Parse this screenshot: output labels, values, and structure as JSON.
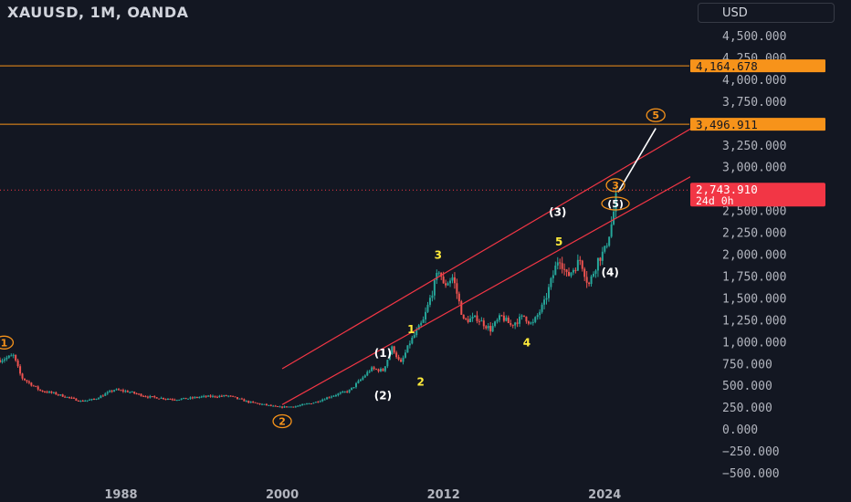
{
  "header": {
    "title": "XAUUSD, 1M, OANDA",
    "currency": "USD"
  },
  "price_badges": {
    "level_high": "4,164.678",
    "level_target": "3,496.911",
    "current_price": "2,743.910",
    "countdown": "24d 0h"
  },
  "colors": {
    "background": "#131722",
    "level_line": "#f7931a",
    "channel": "#f23645",
    "candle_up": "#26a69a",
    "candle_down": "#ef5350",
    "wave_label": "#ffeb3b",
    "arrow": "#ffffff"
  },
  "chart_data": {
    "type": "candlestick",
    "x_ticks": [
      "1988",
      "2000",
      "2012",
      "2024"
    ],
    "y_ticks": [
      "4,500.000",
      "4,250.000",
      "4,000.000",
      "3,750.000",
      "3,500.000",
      "3,250.000",
      "3,000.000",
      "2,750.000",
      "2,500.000",
      "2,250.000",
      "2,000.000",
      "1,750.000",
      "1,500.000",
      "1,250.000",
      "1,000.000",
      "750.000",
      "500.000",
      "250.000",
      "0.000",
      "−250.000",
      "−500.000"
    ],
    "y_tick_values": [
      4500,
      4250,
      4000,
      3750,
      3500,
      3250,
      3000,
      2750,
      2500,
      2250,
      2000,
      1750,
      1500,
      1250,
      1000,
      750,
      500,
      250,
      0,
      -250,
      -500
    ],
    "ylim": [
      -550,
      4800
    ],
    "xlim": [
      1979.0,
      2030.3
    ],
    "horizontal_levels": [
      4164.678,
      3496.911
    ],
    "current_price": 2743.91,
    "price_path": [
      [
        1979.0,
        800
      ],
      [
        1980.0,
        850
      ],
      [
        1980.6,
        600
      ],
      [
        1982.0,
        450
      ],
      [
        1983.0,
        420
      ],
      [
        1985.0,
        330
      ],
      [
        1986.0,
        350
      ],
      [
        1987.5,
        460
      ],
      [
        1988.5,
        440
      ],
      [
        1990.0,
        380
      ],
      [
        1992.0,
        350
      ],
      [
        1993.0,
        360
      ],
      [
        1994.0,
        380
      ],
      [
        1996.0,
        390
      ],
      [
        1997.5,
        320
      ],
      [
        1999.0,
        280
      ],
      [
        1999.7,
        260
      ],
      [
        2001.0,
        270
      ],
      [
        2002.5,
        320
      ],
      [
        2003.5,
        380
      ],
      [
        2005.0,
        450
      ],
      [
        2006.0,
        600
      ],
      [
        2006.6,
        700
      ],
      [
        2007.5,
        680
      ],
      [
        2008.2,
        950
      ],
      [
        2008.8,
        750
      ],
      [
        2009.5,
        1000
      ],
      [
        2010.5,
        1250
      ],
      [
        2011.7,
        1850
      ],
      [
        2012.0,
        1650
      ],
      [
        2012.7,
        1750
      ],
      [
        2013.5,
        1250
      ],
      [
        2014.5,
        1280
      ],
      [
        2015.5,
        1150
      ],
      [
        2016.3,
        1300
      ],
      [
        2017.0,
        1200
      ],
      [
        2018.0,
        1300
      ],
      [
        2018.6,
        1200
      ],
      [
        2019.5,
        1450
      ],
      [
        2020.6,
        1990
      ],
      [
        2021.2,
        1750
      ],
      [
        2022.2,
        1950
      ],
      [
        2022.8,
        1650
      ],
      [
        2023.5,
        1950
      ],
      [
        2024.0,
        2050
      ],
      [
        2024.5,
        2350
      ],
      [
        2024.9,
        2700
      ]
    ],
    "channel_upper": [
      [
        2000.0,
        700
      ],
      [
        2031.0,
        3500
      ]
    ],
    "channel_lower": [
      [
        2000.0,
        290
      ],
      [
        2031.0,
        2950
      ]
    ],
    "arrow": [
      [
        2025.0,
        2720
      ],
      [
        2027.8,
        3450
      ]
    ],
    "wave_labels": [
      {
        "text": "1",
        "x": 1979.3,
        "y": 1000,
        "style": "circled"
      },
      {
        "text": "2",
        "x": 2000.0,
        "y": 100,
        "style": "circled"
      },
      {
        "text": "3",
        "x": 2024.8,
        "y": 2800,
        "style": "circled"
      },
      {
        "text": "5",
        "x": 2027.8,
        "y": 3600,
        "style": "circled"
      },
      {
        "text": "(5)",
        "x": 2024.8,
        "y": 2590,
        "style": "circled"
      },
      {
        "text": "(1)",
        "x": 2007.5,
        "y": 880,
        "style": "paren"
      },
      {
        "text": "(2)",
        "x": 2007.5,
        "y": 390,
        "style": "paren"
      },
      {
        "text": "(3)",
        "x": 2020.5,
        "y": 2490,
        "style": "paren"
      },
      {
        "text": "(4)",
        "x": 2024.4,
        "y": 1800,
        "style": "paren"
      },
      {
        "text": "1",
        "x": 2009.6,
        "y": 1150,
        "style": "plain"
      },
      {
        "text": "2",
        "x": 2010.3,
        "y": 550,
        "style": "plain"
      },
      {
        "text": "3",
        "x": 2011.6,
        "y": 2000,
        "style": "plain"
      },
      {
        "text": "4",
        "x": 2018.2,
        "y": 1000,
        "style": "plain"
      },
      {
        "text": "5",
        "x": 2020.6,
        "y": 2150,
        "style": "plain"
      }
    ]
  }
}
